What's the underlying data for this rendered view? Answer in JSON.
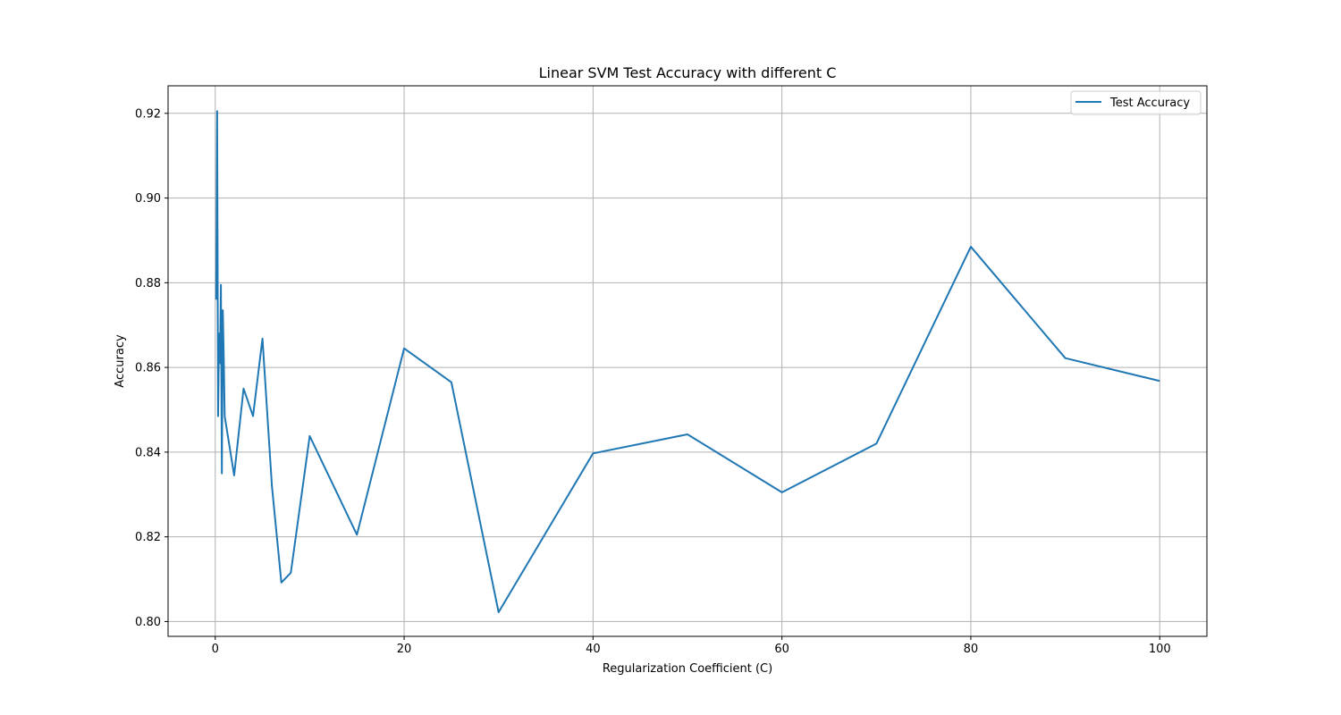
{
  "chart_data": {
    "type": "line",
    "title": "Linear SVM Test Accuracy with different C",
    "xlabel": "Regularization Coefficient (C)",
    "ylabel": "Accuracy",
    "xlim": [
      -4.995,
      104.995
    ],
    "ylim": [
      0.7965,
      0.9265
    ],
    "x_ticks": [
      0,
      20,
      40,
      60,
      80,
      100
    ],
    "x_tick_labels": [
      "0",
      "20",
      "40",
      "60",
      "80",
      "100"
    ],
    "y_ticks": [
      0.8,
      0.82,
      0.84,
      0.86,
      0.88,
      0.9,
      0.92
    ],
    "y_tick_labels": [
      "0.80",
      "0.82",
      "0.84",
      "0.86",
      "0.88",
      "0.90",
      "0.92"
    ],
    "grid": true,
    "legend_position": "top-right",
    "series": [
      {
        "name": "Test Accuracy",
        "color": "#1f77b4",
        "x": [
          0.1,
          0.2,
          0.3,
          0.4,
          0.5,
          0.6,
          0.7,
          0.8,
          0.9,
          1,
          2,
          3,
          4,
          5,
          6,
          7,
          8,
          10,
          15,
          20,
          25,
          30,
          40,
          50,
          60,
          70,
          80,
          90,
          100
        ],
        "y": [
          0.876,
          0.9205,
          0.8485,
          0.868,
          0.861,
          0.8795,
          0.835,
          0.8735,
          0.8625,
          0.8485,
          0.8345,
          0.855,
          0.8485,
          0.8668,
          0.832,
          0.8092,
          0.8115,
          0.8438,
          0.8205,
          0.8645,
          0.8565,
          0.8022,
          0.8397,
          0.8442,
          0.8305,
          0.842,
          0.8885,
          0.8622,
          0.8568
        ]
      }
    ]
  }
}
